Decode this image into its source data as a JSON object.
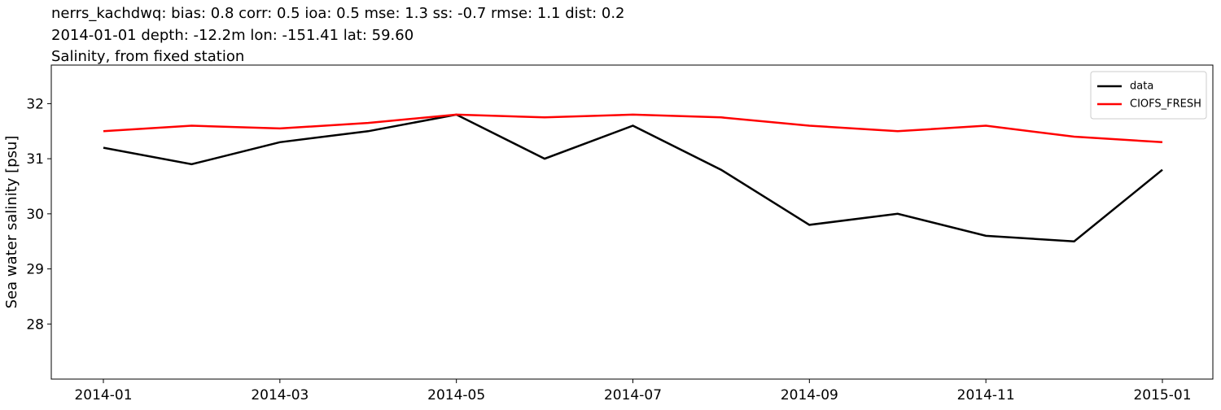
{
  "chart_data": {
    "type": "line",
    "title": "nerrs_kachdwq: bias: 0.8  corr: 0.5  ioa: 0.5  mse: 1.3  ss: -0.7  rmse: 1.1  dist: 0.2",
    "subtitle": "2014-01-01 depth: -12.2m lon: -151.41 lat: 59.60",
    "annotation": "Salinity, from fixed station",
    "y_label": "Sea water salinity [psu]",
    "x": [
      "2014-01",
      "2014-02",
      "2014-03",
      "2014-04",
      "2014-05",
      "2014-06",
      "2014-07",
      "2014-08",
      "2014-09",
      "2014-10",
      "2014-11",
      "2014-12",
      "2015-01"
    ],
    "xticks": [
      "2014-01",
      "2014-03",
      "2014-05",
      "2014-07",
      "2014-09",
      "2014-11",
      "2015-01"
    ],
    "series": [
      {
        "name": "data",
        "color": "#000000",
        "values": [
          31.2,
          30.9,
          31.3,
          31.5,
          31.8,
          31.0,
          31.6,
          30.8,
          29.8,
          30.0,
          29.6,
          29.5,
          30.8
        ]
      },
      {
        "name": "CIOFS_FRESH",
        "color": "#ff0000",
        "values": [
          31.5,
          31.6,
          31.55,
          31.65,
          31.8,
          31.75,
          31.8,
          31.75,
          31.6,
          31.5,
          31.6,
          31.4,
          31.3
        ]
      }
    ],
    "ylim": [
      27.0,
      32.7
    ],
    "yticks": [
      28,
      29,
      30,
      31,
      32
    ],
    "grid": false,
    "legend": "upper right"
  }
}
